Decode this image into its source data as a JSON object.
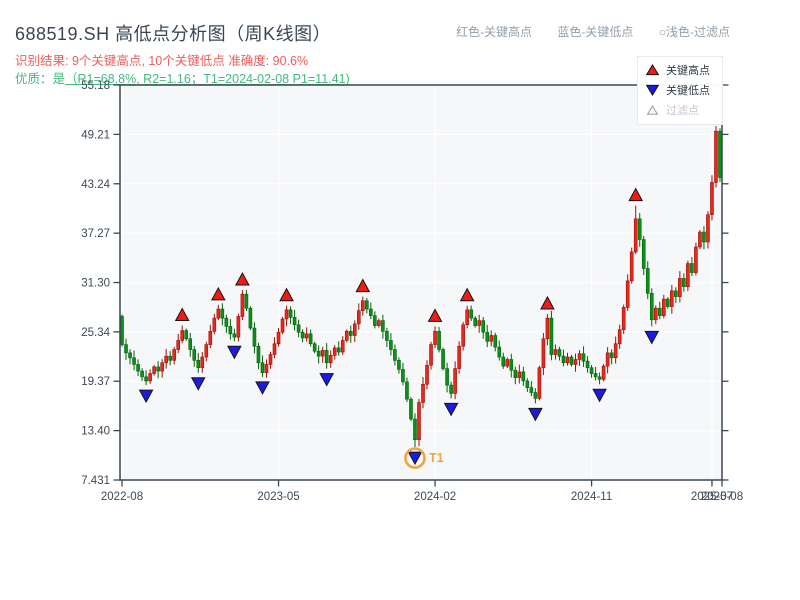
{
  "header": {
    "title": "688519.SH 高低点分析图（周K线图）",
    "result_line": "识别结果: 9个关键高点, 10个关键低点  准确度: 90.6%",
    "quality_prefix": "优质：是",
    "quality_detail": "（R1=68.8%, R2=1.16；T1=2024-02-08 P1=11.41)",
    "top_legend": [
      {
        "label": "红色-关键高点"
      },
      {
        "label": "蓝色-关键低点"
      },
      {
        "label": "○浅色-过滤点"
      }
    ]
  },
  "legend": {
    "items": [
      {
        "label": "关键高点",
        "marker": "up-triangle",
        "color": "#e8281c"
      },
      {
        "label": "关键低点",
        "marker": "down-triangle",
        "color": "#1c1ce0"
      },
      {
        "label": "过滤点",
        "marker": "up-triangle-outline",
        "color": "#f4f4f4"
      }
    ]
  },
  "chart_data": {
    "type": "candlestick",
    "timeframe": "weekly",
    "symbol": "688519.SH",
    "y_range": [
      7.431,
      55.18
    ],
    "y_ticks": [
      "55.18",
      "49.21",
      "43.24",
      "37.27",
      "31.30",
      "25.34",
      "19.37",
      "13.40",
      "7.431"
    ],
    "x_ticks": [
      {
        "week": 0,
        "label": "2022-08"
      },
      {
        "week": 39,
        "label": "2023-05"
      },
      {
        "week": 78,
        "label": "2024-02"
      },
      {
        "week": 117,
        "label": "2024-11"
      },
      {
        "week": 147,
        "label": "2025-07"
      },
      {
        "week": 149.5,
        "label": "2025-08"
      }
    ],
    "first_open": 27.2,
    "closes": [
      23.8,
      22.8,
      22.2,
      21.4,
      20.6,
      19.9,
      19.4,
      20.3,
      21.1,
      20.6,
      21.6,
      22.4,
      21.9,
      23.2,
      24.3,
      25.5,
      24.5,
      23.2,
      21.9,
      21.0,
      22.3,
      23.8,
      25.4,
      27.0,
      28.1,
      27.0,
      26.0,
      25.1,
      24.7,
      27.2,
      29.9,
      28.2,
      25.8,
      23.6,
      21.6,
      20.4,
      21.4,
      22.6,
      23.9,
      25.3,
      26.9,
      28.0,
      27.1,
      26.2,
      25.3,
      24.6,
      25.1,
      23.9,
      23.0,
      22.4,
      23.1,
      21.6,
      22.5,
      23.4,
      22.9,
      24.3,
      25.4,
      24.9,
      26.3,
      27.9,
      29.1,
      28.1,
      27.3,
      26.1,
      26.7,
      25.4,
      24.3,
      23.2,
      21.9,
      20.8,
      19.3,
      17.2,
      14.8,
      12.3,
      16.8,
      19.0,
      21.3,
      23.8,
      25.4,
      23.2,
      20.9,
      18.9,
      17.9,
      20.9,
      23.6,
      26.2,
      28.0,
      27.0,
      26.1,
      26.7,
      25.3,
      24.2,
      24.9,
      23.5,
      22.3,
      21.2,
      22.0,
      20.7,
      19.8,
      20.5,
      19.4,
      18.6,
      18.0,
      17.3,
      21.0,
      24.5,
      27.0,
      22.6,
      23.2,
      22.4,
      21.6,
      22.3,
      21.4,
      22.0,
      22.7,
      21.8,
      21.0,
      20.3,
      19.9,
      19.6,
      21.2,
      22.8,
      22.2,
      23.9,
      25.6,
      28.3,
      31.5,
      35.0,
      39.0,
      36.5,
      33.0,
      30.0,
      26.8,
      28.2,
      27.3,
      29.3,
      28.4,
      30.3,
      29.6,
      31.8,
      30.8,
      33.6,
      32.5,
      35.6,
      37.4,
      36.2,
      39.5,
      43.4,
      49.6,
      44.0
    ],
    "key_highs": [
      {
        "week": 15,
        "price": 26.1
      },
      {
        "week": 24,
        "price": 28.6
      },
      {
        "week": 30,
        "price": 30.4
      },
      {
        "week": 41,
        "price": 28.5
      },
      {
        "week": 60,
        "price": 29.6
      },
      {
        "week": 78,
        "price": 26.0
      },
      {
        "week": 86,
        "price": 28.5
      },
      {
        "week": 106,
        "price": 27.5
      },
      {
        "week": 128,
        "price": 40.6
      }
    ],
    "key_lows": [
      {
        "week": 6,
        "price": 18.9
      },
      {
        "week": 19,
        "price": 20.4
      },
      {
        "week": 28,
        "price": 24.2
      },
      {
        "week": 35,
        "price": 19.9
      },
      {
        "week": 51,
        "price": 20.9
      },
      {
        "week": 73,
        "price": 11.41,
        "annotation": "T1"
      },
      {
        "week": 82,
        "price": 17.3
      },
      {
        "week": 103,
        "price": 16.7
      },
      {
        "week": 119,
        "price": 19.0
      },
      {
        "week": 132,
        "price": 26.0
      }
    ],
    "colors": {
      "up_body": "#e8281c",
      "up_edge": "#9c120a",
      "down_body": "#0c9118",
      "down_edge": "#06610d",
      "high_marker": "#ed1c16",
      "low_marker": "#1c1ce0",
      "marker_edge": "#141414",
      "filtered_marker": "#f4f4f4",
      "filtered_edge": "#9aa0a6",
      "annotation": "#f2a33c",
      "plot_bg": "#f6f7f9",
      "grid": "#ffffff",
      "axis": "#3b4754",
      "tick_label": "#3d4956"
    }
  }
}
